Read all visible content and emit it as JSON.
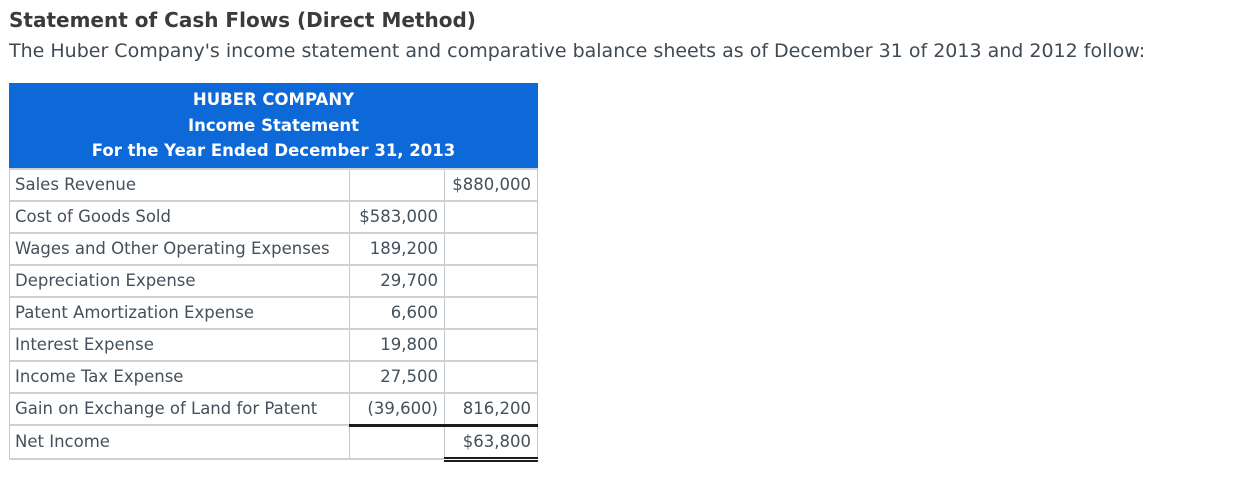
{
  "page": {
    "title": "Statement of Cash Flows (Direct Method)",
    "subtitle": "The Huber Company's income statement and comparative balance sheets as of December 31 of 2013 and 2012 follow:"
  },
  "colors": {
    "table_header_bg": "#0d69d7",
    "table_header_text": "#ffffff",
    "body_text": "#44505c",
    "grid_line": "#c3c8cc",
    "rule_line": "#1b1b1b"
  },
  "statement": {
    "header_lines": [
      "HUBER COMPANY",
      "Income Statement",
      "For the Year Ended December 31, 2013"
    ],
    "columns": [
      "label",
      "amount",
      "total"
    ],
    "rows": [
      {
        "label": "Sales Revenue",
        "amount": "",
        "total": "$880,000"
      },
      {
        "label": "Cost of Goods Sold",
        "amount": "$583,000",
        "total": ""
      },
      {
        "label": "Wages and Other Operating Expenses",
        "amount": "189,200",
        "total": ""
      },
      {
        "label": "Depreciation Expense",
        "amount": "29,700",
        "total": ""
      },
      {
        "label": "Patent Amortization Expense",
        "amount": "6,600",
        "total": ""
      },
      {
        "label": "Interest Expense",
        "amount": "19,800",
        "total": ""
      },
      {
        "label": "Income Tax Expense",
        "amount": "27,500",
        "total": ""
      },
      {
        "label": "Gain on Exchange of Land for Patent",
        "amount": "(39,600)",
        "total": "816,200",
        "rule": "single"
      },
      {
        "label": "Net Income",
        "amount": "",
        "total": "$63,800",
        "rule": "double"
      }
    ]
  }
}
